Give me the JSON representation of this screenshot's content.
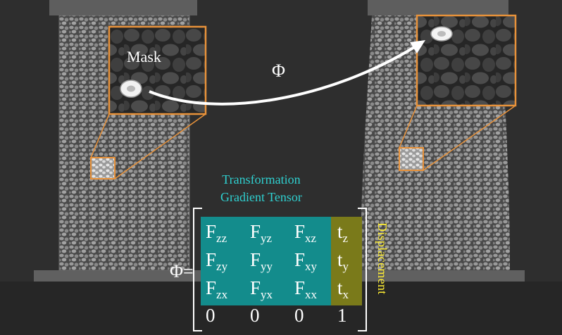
{
  "annotations": {
    "mask_label": "Mask",
    "phi_label": "Φ",
    "phi_equals": "Φ=",
    "tensor_title_line1": "Transformation",
    "tensor_title_line2": "Gradient Tensor",
    "displacement_label": "Displacement"
  },
  "matrix": {
    "rows": [
      [
        {
          "base": "F",
          "sub": "zz"
        },
        {
          "base": "F",
          "sub": "yz"
        },
        {
          "base": "F",
          "sub": "xz"
        },
        {
          "base": "t",
          "sub": "z"
        }
      ],
      [
        {
          "base": "F",
          "sub": "zy"
        },
        {
          "base": "F",
          "sub": "yy"
        },
        {
          "base": "F",
          "sub": "xy"
        },
        {
          "base": "t",
          "sub": "y"
        }
      ],
      [
        {
          "base": "F",
          "sub": "zx"
        },
        {
          "base": "F",
          "sub": "yx"
        },
        {
          "base": "F",
          "sub": "xx"
        },
        {
          "base": "t",
          "sub": "x"
        }
      ],
      [
        {
          "base": "0",
          "sub": ""
        },
        {
          "base": "0",
          "sub": ""
        },
        {
          "base": "0",
          "sub": ""
        },
        {
          "base": "1",
          "sub": ""
        }
      ]
    ]
  },
  "colors": {
    "background": "#2e2e2e",
    "specimen": "#5a5a5a",
    "highlight_box": "#e8923a",
    "gradient_block": "#138c8c",
    "displacement_block": "#7a7a1a",
    "tensor_label": "#2fd0d0",
    "displacement_text": "#ffee33",
    "arrow": "#ffffff"
  }
}
